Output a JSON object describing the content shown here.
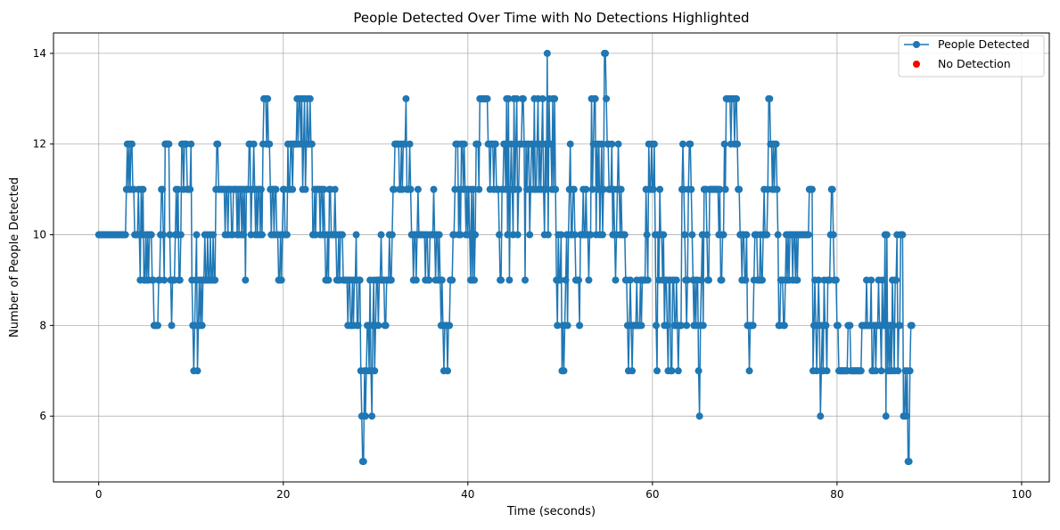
{
  "chart_data": {
    "type": "line",
    "title": "People Detected Over Time with No Detections Highlighted",
    "xlabel": "Time (seconds)",
    "ylabel": "Number of People Detected",
    "xlim": [
      -4.9,
      103.0
    ],
    "ylim": [
      4.55,
      14.45
    ],
    "xticks": [
      0,
      20,
      40,
      60,
      80,
      100
    ],
    "yticks": [
      6,
      8,
      10,
      12,
      14
    ],
    "xtick_labels": [
      "0",
      "20",
      "40",
      "60",
      "80",
      "100"
    ],
    "ytick_labels": [
      "6",
      "8",
      "10",
      "12",
      "14"
    ],
    "grid": true,
    "legend_position": "top-right",
    "colors": {
      "series": "#1f77b4",
      "no_detection": "#ff0000",
      "grid": "#b0b0b0"
    },
    "series": [
      {
        "name": "People Detected",
        "marker": "circle",
        "x_start": 0,
        "x_step": 0.1,
        "values": [
          10,
          10,
          10,
          10,
          10,
          10,
          10,
          10,
          10,
          10,
          10,
          10,
          10,
          10,
          10,
          10,
          10,
          10,
          10,
          10,
          10,
          10,
          10,
          10,
          10,
          10,
          10,
          10,
          10,
          10,
          11,
          12,
          11,
          12,
          11,
          12,
          12,
          11,
          11,
          10,
          10,
          10,
          10,
          11,
          10,
          9,
          11,
          10,
          11,
          9,
          9,
          10,
          9,
          10,
          9,
          10,
          10,
          10,
          9,
          9,
          8,
          8,
          8,
          8,
          8,
          9,
          9,
          10,
          11,
          11,
          10,
          9,
          12,
          12,
          12,
          12,
          12,
          10,
          9,
          8,
          9,
          9,
          9,
          10,
          11,
          10,
          11,
          9,
          9,
          10,
          12,
          12,
          11,
          12,
          12,
          12,
          11,
          11,
          11,
          11,
          12,
          9,
          8,
          7,
          8,
          9,
          10,
          7,
          8,
          9,
          8,
          9,
          8,
          9,
          9,
          10,
          9,
          9,
          10,
          9,
          9,
          10,
          9,
          9,
          10,
          9,
          9,
          11,
          12,
          12,
          11,
          11,
          11,
          11,
          11,
          11,
          11,
          10,
          11,
          11,
          10,
          11,
          11,
          11,
          10,
          10,
          11,
          11,
          11,
          11,
          10,
          11,
          10,
          11,
          11,
          10,
          11,
          10,
          11,
          9,
          11,
          11,
          11,
          12,
          12,
          10,
          11,
          11,
          12,
          11,
          10,
          11,
          10,
          11,
          11,
          10,
          11,
          10,
          12,
          13,
          13,
          13,
          12,
          13,
          12,
          12,
          11,
          10,
          11,
          11,
          10,
          11,
          11,
          10,
          10,
          9,
          9,
          10,
          9,
          10,
          11,
          11,
          10,
          10,
          10,
          12,
          11,
          11,
          12,
          12,
          11,
          12,
          12,
          12,
          12,
          13,
          12,
          13,
          13,
          12,
          13,
          11,
          12,
          13,
          11,
          12,
          13,
          12,
          12,
          13,
          12,
          12,
          10,
          10,
          11,
          10,
          11,
          11,
          11,
          11,
          10,
          11,
          11,
          10,
          11,
          10,
          9,
          9,
          10,
          9,
          11,
          11,
          10,
          10,
          10,
          10,
          11,
          10,
          9,
          9,
          10,
          9,
          10,
          10,
          10,
          9,
          9,
          9,
          9,
          9,
          8,
          9,
          9,
          8,
          8,
          9,
          8,
          9,
          9,
          10,
          8,
          8,
          9,
          9,
          7,
          6,
          5,
          5,
          7,
          6,
          7,
          8,
          8,
          7,
          9,
          7,
          6,
          8,
          9,
          7,
          8,
          9,
          9,
          8,
          9,
          9,
          10,
          9,
          9,
          9,
          8,
          8,
          9,
          9,
          9,
          10,
          9,
          9,
          10,
          11,
          11,
          12,
          12,
          12,
          12,
          12,
          11,
          11,
          12,
          11,
          12,
          12,
          12,
          13,
          11,
          11,
          11,
          12,
          11,
          10,
          10,
          9,
          10,
          10,
          9,
          10,
          11,
          10,
          10,
          10,
          10,
          10,
          10,
          10,
          9,
          10,
          10,
          9,
          9,
          10,
          10,
          10,
          10,
          11,
          10,
          9,
          10,
          10,
          9,
          10,
          9,
          8,
          9,
          8,
          7,
          8,
          8,
          8,
          7,
          8,
          8,
          9,
          9,
          9,
          10,
          10,
          11,
          12,
          12,
          12,
          10,
          11,
          10,
          12,
          12,
          11,
          12,
          11,
          10,
          11,
          10,
          11,
          10,
          9,
          11,
          9,
          11,
          9,
          10,
          12,
          12,
          12,
          11,
          13,
          13,
          13,
          13,
          13,
          13,
          13,
          13,
          13,
          12,
          12,
          11,
          12,
          12,
          12,
          11,
          12,
          12,
          11,
          11,
          11,
          10,
          9,
          9,
          11,
          11,
          12,
          12,
          11,
          13,
          10,
          13,
          9,
          11,
          12,
          11,
          10,
          13,
          11,
          12,
          13,
          10,
          11,
          12,
          12,
          12,
          13,
          13,
          12,
          9,
          12,
          11,
          12,
          12,
          10,
          11,
          12,
          12,
          11,
          13,
          11,
          11,
          12,
          13,
          11,
          12,
          11,
          12,
          13,
          11,
          10,
          12,
          11,
          14,
          10,
          13,
          12,
          12,
          11,
          13,
          11,
          13,
          11,
          9,
          8,
          10,
          9,
          9,
          10,
          7,
          8,
          7,
          8,
          9,
          10,
          8,
          10,
          11,
          12,
          10,
          10,
          11,
          11,
          10,
          9,
          9,
          9,
          9,
          8,
          10,
          10,
          10,
          11,
          10,
          10,
          11,
          10,
          10,
          9,
          10,
          10,
          13,
          11,
          12,
          13,
          13,
          10,
          12,
          11,
          12,
          10,
          11,
          12,
          10,
          11,
          14,
          14,
          13,
          12,
          12,
          11,
          11,
          11,
          12,
          10,
          11,
          10,
          9,
          10,
          11,
          12,
          11,
          10,
          11,
          10,
          10,
          10,
          10,
          9,
          9,
          8,
          7,
          8,
          9,
          8,
          7,
          8,
          8,
          8,
          8,
          9,
          8,
          8,
          8,
          9,
          8,
          9,
          9,
          9,
          9,
          11,
          10,
          9,
          12,
          11,
          11,
          12,
          11,
          11,
          12,
          10,
          8,
          7,
          10,
          9,
          11,
          10,
          10,
          9,
          10,
          8,
          9,
          9,
          8,
          7,
          9,
          9,
          7,
          7,
          9,
          9,
          8,
          8,
          9,
          8,
          7,
          8,
          8,
          8,
          11,
          12,
          11,
          10,
          9,
          8,
          9,
          11,
          12,
          12,
          11,
          10,
          9,
          8,
          9,
          8,
          9,
          9,
          7,
          6,
          8,
          9,
          10,
          8,
          11,
          11,
          11,
          10,
          9,
          9,
          11,
          11,
          11,
          11,
          11,
          11,
          11,
          11,
          11,
          11,
          10,
          11,
          9,
          9,
          10,
          10,
          12,
          11,
          13,
          13,
          13,
          13,
          13,
          12,
          13,
          13,
          13,
          12,
          13,
          13,
          12,
          11,
          11,
          10,
          10,
          9,
          10,
          10,
          9,
          9,
          10,
          8,
          8,
          7,
          8,
          8,
          8,
          8,
          9,
          10,
          10,
          10,
          9,
          9,
          9,
          10,
          9,
          9,
          10,
          11,
          10,
          10,
          10,
          11,
          13,
          13,
          12,
          12,
          11,
          12,
          11,
          12,
          12,
          11,
          10,
          8,
          8,
          9,
          9,
          9,
          8,
          8,
          9,
          10,
          9,
          10,
          9,
          10,
          10,
          10,
          9,
          10,
          10,
          9,
          10,
          9,
          10,
          10,
          10,
          10,
          10,
          10,
          10,
          10,
          10,
          10,
          10,
          10,
          11,
          11,
          11,
          11,
          7,
          8,
          9,
          8,
          7,
          8,
          9,
          8,
          6,
          7,
          8,
          7,
          9,
          8,
          8,
          7,
          9,
          9,
          9,
          10,
          11,
          11,
          10,
          9,
          9,
          9,
          8,
          8,
          7,
          7,
          7,
          7,
          7,
          7,
          7,
          7,
          7,
          7,
          8,
          8,
          8,
          7,
          7,
          7,
          7,
          7,
          7,
          7,
          7,
          7,
          7,
          7,
          7,
          8,
          8,
          8,
          8,
          8,
          9,
          8,
          8,
          8,
          8,
          9,
          7,
          7,
          8,
          8,
          7,
          8,
          8,
          9,
          8,
          8,
          7,
          9,
          8,
          8,
          10,
          6,
          10,
          7,
          8,
          7,
          8,
          7,
          9,
          8,
          7,
          9,
          9,
          10,
          7,
          8,
          8,
          10,
          10,
          10,
          6,
          6,
          7,
          6,
          7,
          5,
          5,
          7,
          8,
          8
        ]
      }
    ],
    "legend": [
      {
        "label": "People Detected",
        "color": "#1f77b4",
        "marker": "circle-line"
      },
      {
        "label": "No Detection",
        "color": "#ff0000",
        "marker": "dot"
      }
    ]
  }
}
